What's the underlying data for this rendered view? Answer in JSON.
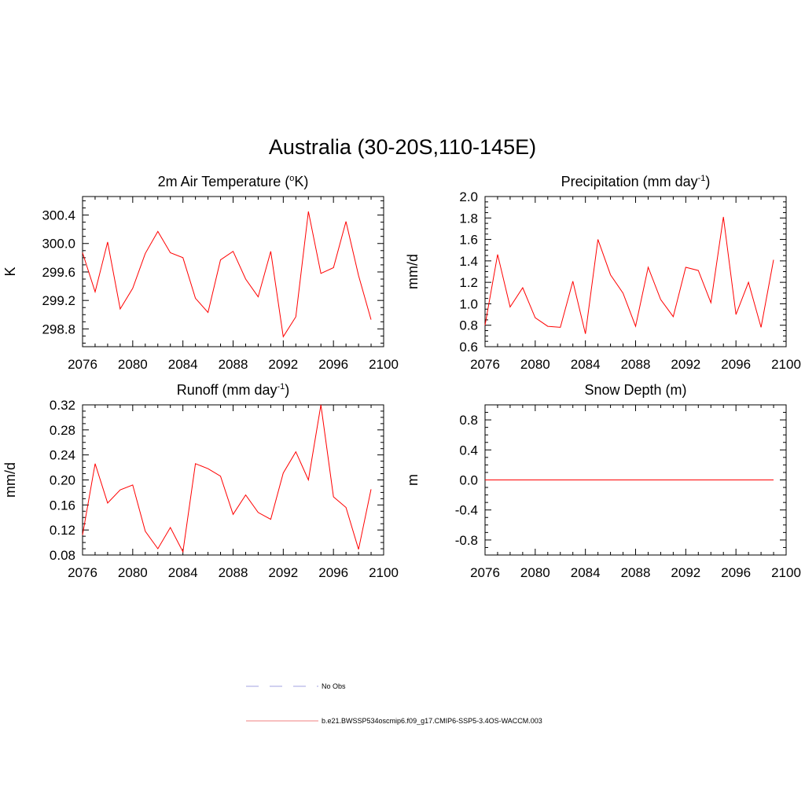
{
  "title": "Australia (30-20S,110-145E)",
  "legend": [
    {
      "label": "No Obs",
      "color": "#a3a3e0",
      "dash": true
    },
    {
      "label": "b.e21.BWSSP534oscmip6.f09_g17.CMIP6-SSP5-3.4OS-WACCM.003",
      "color": "#f08080",
      "dash": false
    }
  ],
  "chart_data": [
    {
      "type": "line",
      "title": "2m Air Temperature (",
      "title_sup": "o",
      "title_suffix": "K)",
      "ylabel": "K",
      "xlim": [
        2076,
        2100
      ],
      "ylim": [
        298.55,
        300.66
      ],
      "xticks": [
        "2076",
        "2080",
        "2084",
        "2088",
        "2092",
        "2096",
        "2100"
      ],
      "yticks": [
        "298.8",
        "299.2",
        "299.6",
        "300.0",
        "300.4"
      ],
      "series": [
        {
          "color": "#ff0000",
          "x": [
            2076,
            2077,
            2078,
            2079,
            2080,
            2081,
            2082,
            2083,
            2084,
            2085,
            2086,
            2087,
            2088,
            2089,
            2090,
            2091,
            2092,
            2093,
            2094,
            2095,
            2096,
            2097,
            2098,
            2099
          ],
          "values": [
            299.87,
            299.32,
            300.02,
            299.08,
            299.37,
            299.86,
            300.17,
            299.87,
            299.8,
            299.23,
            299.03,
            299.77,
            299.89,
            299.5,
            299.25,
            299.89,
            298.69,
            298.97,
            300.45,
            299.58,
            299.66,
            300.31,
            299.55,
            298.93
          ]
        }
      ]
    },
    {
      "type": "line",
      "title": "Precipitation (mm day",
      "title_sup": "-1",
      "title_suffix": ")",
      "ylabel": "mm/d",
      "xlim": [
        2076,
        2100
      ],
      "ylim": [
        0.6,
        2.0
      ],
      "xticks": [
        "2076",
        "2080",
        "2084",
        "2088",
        "2092",
        "2096",
        "2100"
      ],
      "yticks": [
        "0.6",
        "0.8",
        "1.0",
        "1.2",
        "1.4",
        "1.6",
        "1.8",
        "2.0"
      ],
      "series": [
        {
          "color": "#ff0000",
          "x": [
            2076,
            2077,
            2078,
            2079,
            2080,
            2081,
            2082,
            2083,
            2084,
            2085,
            2086,
            2087,
            2088,
            2089,
            2090,
            2091,
            2092,
            2093,
            2094,
            2095,
            2096,
            2097,
            2098,
            2099
          ],
          "values": [
            0.8,
            1.46,
            0.97,
            1.15,
            0.87,
            0.79,
            0.78,
            1.21,
            0.72,
            1.6,
            1.27,
            1.1,
            0.79,
            1.34,
            1.04,
            0.88,
            1.34,
            1.31,
            1.01,
            1.81,
            0.9,
            1.2,
            0.78,
            1.41
          ]
        }
      ]
    },
    {
      "type": "line",
      "title": "Runoff (mm day",
      "title_sup": "-1",
      "title_suffix": ")",
      "ylabel": "mm/d",
      "xlim": [
        2076,
        2100
      ],
      "ylim": [
        0.08,
        0.32
      ],
      "xticks": [
        "2076",
        "2080",
        "2084",
        "2088",
        "2092",
        "2096",
        "2100"
      ],
      "yticks": [
        "0.08",
        "0.12",
        "0.16",
        "0.20",
        "0.24",
        "0.28",
        "0.32"
      ],
      "series": [
        {
          "color": "#ff0000",
          "x": [
            2076,
            2077,
            2078,
            2079,
            2080,
            2081,
            2082,
            2083,
            2084,
            2085,
            2086,
            2087,
            2088,
            2089,
            2090,
            2091,
            2092,
            2093,
            2094,
            2095,
            2096,
            2097,
            2098,
            2099
          ],
          "values": [
            0.112,
            0.226,
            0.163,
            0.184,
            0.192,
            0.118,
            0.09,
            0.124,
            0.085,
            0.226,
            0.218,
            0.206,
            0.145,
            0.176,
            0.148,
            0.137,
            0.211,
            0.245,
            0.2,
            0.32,
            0.173,
            0.156,
            0.089,
            0.185
          ]
        }
      ]
    },
    {
      "type": "line",
      "title": "Snow Depth (m)",
      "title_sup": "",
      "title_suffix": "",
      "ylabel": "m",
      "xlim": [
        2076,
        2100
      ],
      "ylim": [
        -1.0,
        1.0
      ],
      "xticks": [
        "2076",
        "2080",
        "2084",
        "2088",
        "2092",
        "2096",
        "2100"
      ],
      "yticks": [
        "-0.8",
        "-0.4",
        "0.0",
        "0.4",
        "0.8"
      ],
      "series": [
        {
          "color": "#ff0000",
          "x": [
            2076,
            2077,
            2078,
            2079,
            2080,
            2081,
            2082,
            2083,
            2084,
            2085,
            2086,
            2087,
            2088,
            2089,
            2090,
            2091,
            2092,
            2093,
            2094,
            2095,
            2096,
            2097,
            2098,
            2099
          ],
          "values": [
            0,
            0,
            0,
            0,
            0,
            0,
            0,
            0,
            0,
            0,
            0,
            0,
            0,
            0,
            0,
            0,
            0,
            0,
            0,
            0,
            0,
            0,
            0,
            0
          ]
        }
      ]
    }
  ]
}
